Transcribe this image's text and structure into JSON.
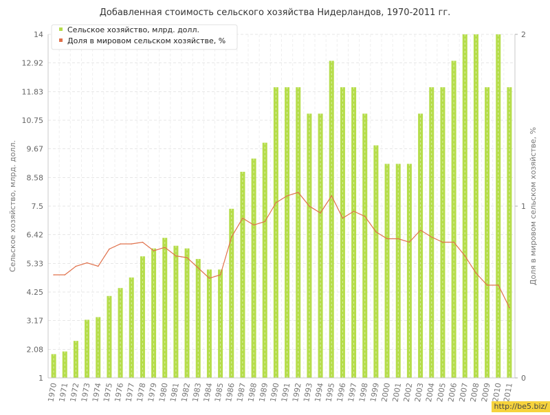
{
  "chart_data": {
    "type": "bar",
    "title": "Добавленная стоимость сельского хозяйства Нидерландов, 1970-2011 гг.",
    "ylabel": "Сельское хозяйство, млрд. долл.",
    "y2label": "Доля в мировом сельском хозяйстве, %",
    "ylim": [
      1,
      14
    ],
    "y2lim": [
      0,
      2
    ],
    "yticks": [
      "1",
      "2.08",
      "3.17",
      "4.25",
      "5.33",
      "6.42",
      "7.5",
      "8.58",
      "9.67",
      "10.75",
      "11.83",
      "12.92",
      "14"
    ],
    "y2ticks": [
      "0",
      "1",
      "2"
    ],
    "categories": [
      "1970",
      "1971",
      "1972",
      "1973",
      "1974",
      "1975",
      "1976",
      "1977",
      "1978",
      "1979",
      "1980",
      "1981",
      "1982",
      "1983",
      "1984",
      "1985",
      "1986",
      "1987",
      "1988",
      "1989",
      "1990",
      "1991",
      "1992",
      "1993",
      "1994",
      "1995",
      "1996",
      "1997",
      "1998",
      "1999",
      "2000",
      "2001",
      "2002",
      "2003",
      "2004",
      "2005",
      "2006",
      "2007",
      "2008",
      "2009",
      "2010",
      "2011"
    ],
    "series": [
      {
        "name": "Сельское хозяйство, млрд. долл.",
        "type": "bar",
        "axis": "left",
        "color": "#b5dd4a",
        "values": [
          1.9,
          2.0,
          2.4,
          3.2,
          3.3,
          4.1,
          4.4,
          4.8,
          5.6,
          5.9,
          6.3,
          6.0,
          5.9,
          5.5,
          5.1,
          5.1,
          7.4,
          8.8,
          9.3,
          9.9,
          12.0,
          12.0,
          12.0,
          11.0,
          11.0,
          13.0,
          12.0,
          12.0,
          11.0,
          9.8,
          9.1,
          9.1,
          9.1,
          11.0,
          12.0,
          12.0,
          13.0,
          14.0,
          14.0,
          12.0,
          14.0,
          12.0
        ]
      },
      {
        "name": "Доля в мировом сельском хозяйстве, %",
        "type": "line",
        "axis": "right",
        "color": "#e0704a",
        "values": [
          0.6,
          0.6,
          0.65,
          0.67,
          0.65,
          0.75,
          0.78,
          0.78,
          0.79,
          0.74,
          0.76,
          0.71,
          0.7,
          0.64,
          0.58,
          0.6,
          0.82,
          0.93,
          0.89,
          0.91,
          1.02,
          1.06,
          1.08,
          1.0,
          0.96,
          1.06,
          0.93,
          0.97,
          0.94,
          0.85,
          0.81,
          0.81,
          0.79,
          0.86,
          0.82,
          0.79,
          0.79,
          0.71,
          0.61,
          0.54,
          0.54,
          0.41
        ]
      }
    ],
    "legend": "top-left",
    "grid": true
  },
  "watermark": "http://be5.biz/"
}
